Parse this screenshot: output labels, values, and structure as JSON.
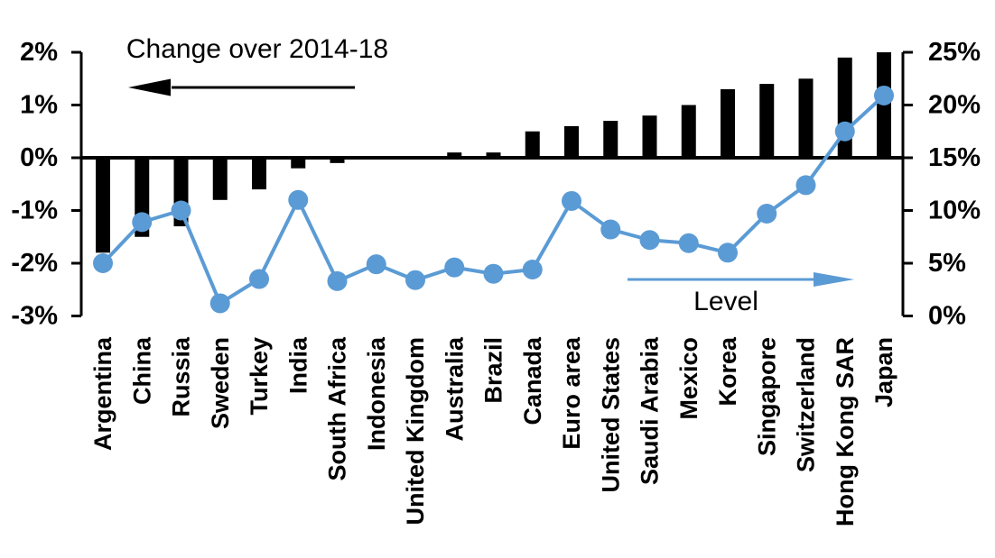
{
  "chart_data": {
    "type": "bar+line-dual-axis",
    "categories": [
      "Argentina",
      "China",
      "Russia",
      "Sweden",
      "Turkey",
      "India",
      "South Africa",
      "Indonesia",
      "United Kingdom",
      "Australia",
      "Brazil",
      "Canada",
      "Euro area",
      "United States",
      "Saudi Arabia",
      "Mexico",
      "Korea",
      "Singapore",
      "Switzerland",
      "Hong Kong SAR",
      "Japan"
    ],
    "series": [
      {
        "name": "Change over 2014-18",
        "type": "bar",
        "axis": "left",
        "values": [
          -1.8,
          -1.5,
          -1.3,
          -0.8,
          -0.6,
          -0.2,
          -0.1,
          0.0,
          0.0,
          0.1,
          0.1,
          0.5,
          0.6,
          0.7,
          0.8,
          1.0,
          1.3,
          1.4,
          1.5,
          1.9,
          2.0
        ]
      },
      {
        "name": "Level",
        "type": "line",
        "axis": "right",
        "values": [
          5.0,
          8.9,
          10.0,
          1.2,
          3.5,
          11.0,
          3.3,
          4.9,
          3.4,
          4.6,
          4.0,
          4.4,
          10.9,
          8.2,
          7.2,
          6.9,
          6.0,
          9.7,
          12.4,
          17.5,
          20.9
        ]
      }
    ],
    "left_axis": {
      "ticks": [
        "2%",
        "1%",
        "0%",
        "-1%",
        "-2%",
        "-3%"
      ],
      "values": [
        2,
        1,
        0,
        -1,
        -2,
        -3
      ],
      "range": [
        -3,
        2
      ],
      "unit": "%"
    },
    "right_axis": {
      "ticks": [
        "25%",
        "20%",
        "15%",
        "10%",
        "5%",
        "0%"
      ],
      "values": [
        25,
        20,
        15,
        10,
        5,
        0
      ],
      "range": [
        0,
        25
      ],
      "unit": "%"
    },
    "annotations": {
      "bar_label": "Change over 2014-18",
      "line_label": "Level"
    },
    "legend_position": "annotations-with-arrows",
    "grid": false,
    "colors": {
      "bar": "#000000",
      "line": "#5B9BD5",
      "background": "#FFFFFF"
    }
  }
}
